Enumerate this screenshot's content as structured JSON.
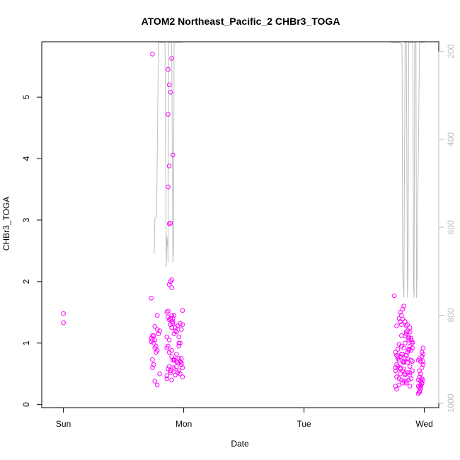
{
  "chart_data": {
    "type": "scatter",
    "title": "ATOM2 Northeast_Pacific_2 CHBr3_TOGA",
    "xlabel": "Date",
    "ylabel": "CHBr3_TOGA",
    "x_ticks": [
      "Sun",
      "Mon",
      "Tue",
      "Wed"
    ],
    "x_tick_days": [
      0,
      1,
      2,
      3
    ],
    "xlim_days": [
      -0.18,
      3.12
    ],
    "ylim": [
      -0.05,
      5.9
    ],
    "y_ticks": [
      0,
      1,
      2,
      3,
      4,
      5
    ],
    "y2_ticks": [
      200,
      400,
      600,
      800,
      1000
    ],
    "y2lim_reversed": [
      178,
      1010
    ],
    "grid": false,
    "colors": {
      "points": "#ff00ff",
      "altitude": "#bebebe",
      "axes": "#000000",
      "right_axis": "#bebebe"
    },
    "series": [
      {
        "marker": "open-circle",
        "x": [
          0.0,
          0.0,
          0.74,
          0.73,
          0.74,
          0.76,
          0.78,
          0.8,
          0.87,
          0.9,
          0.88,
          0.89,
          0.87,
          0.88,
          0.88,
          0.91,
          0.87,
          0.89,
          0.9,
          0.88,
          0.89,
          0.9,
          0.9,
          0.91,
          0.9,
          0.73,
          0.75,
          0.76,
          0.77,
          0.74,
          0.78,
          0.76,
          0.75,
          0.78,
          0.73,
          0.79,
          0.76,
          0.74,
          0.78,
          0.77,
          0.75,
          0.74,
          0.8,
          0.86,
          0.87,
          0.88,
          0.89,
          0.9,
          0.91,
          0.92,
          0.93,
          0.94,
          0.95,
          0.96,
          0.97,
          0.98,
          0.99,
          0.86,
          0.88,
          0.9,
          0.92,
          0.94,
          0.96,
          0.98,
          0.87,
          0.89,
          0.91,
          0.93,
          0.95,
          0.97,
          0.99,
          0.86,
          0.9,
          0.94,
          0.98,
          0.88,
          0.92,
          0.96,
          0.87,
          0.91,
          0.95,
          0.99,
          0.89,
          0.93,
          0.97,
          0.86,
          0.9,
          0.94,
          0.98,
          0.88,
          0.92,
          0.96,
          0.87,
          0.91,
          0.95,
          0.99,
          0.89,
          0.93,
          0.97,
          0.86,
          0.92,
          0.96,
          2.75,
          2.77,
          2.8,
          2.81,
          2.82,
          2.8,
          2.79,
          2.82,
          2.83,
          2.81,
          2.84,
          2.86,
          2.85,
          2.87,
          2.88,
          2.86,
          2.89,
          2.9,
          2.88,
          2.85,
          2.84,
          2.87,
          2.76,
          2.77,
          2.78,
          2.79,
          2.8,
          2.81,
          2.82,
          2.83,
          2.84,
          2.85,
          2.86,
          2.87,
          2.88,
          2.89,
          2.9,
          2.76,
          2.78,
          2.8,
          2.82,
          2.84,
          2.86,
          2.88,
          2.9,
          2.77,
          2.79,
          2.81,
          2.83,
          2.85,
          2.87,
          2.89,
          2.76,
          2.79,
          2.82,
          2.85,
          2.88,
          2.77,
          2.8,
          2.83,
          2.86,
          2.89,
          2.78,
          2.81,
          2.84,
          2.87,
          2.9,
          2.76,
          2.8,
          2.84,
          2.88,
          2.79,
          2.83,
          2.87,
          2.78,
          2.82,
          2.86,
          2.9,
          2.81,
          2.85,
          2.89,
          2.77,
          2.83,
          2.88,
          2.95,
          2.96,
          2.97,
          2.98,
          2.96,
          2.95,
          2.97,
          2.98,
          2.99,
          2.97,
          2.96,
          2.98,
          2.99,
          2.96,
          2.97,
          2.95,
          2.98,
          2.99,
          2.97,
          2.96,
          2.98,
          2.99,
          2.95,
          2.97,
          2.99,
          2.96,
          2.98
        ],
        "y": [
          1.48,
          1.33,
          5.7,
          1.73,
          1.12,
          1.05,
          1.45,
          1.2,
          5.45,
          5.63,
          5.2,
          5.08,
          4.72,
          2.94,
          3.88,
          4.06,
          3.54,
          2.95,
          2.03,
          1.95,
          2.0,
          1.9,
          1.45,
          1.4,
          1.35,
          1.08,
          1.0,
          0.92,
          0.95,
          0.73,
          0.88,
          1.27,
          1.12,
          1.22,
          1.02,
          1.15,
          0.38,
          0.6,
          0.32,
          0.85,
          0.65,
          1.05,
          0.5,
          1.5,
          1.52,
          1.38,
          1.3,
          1.25,
          1.35,
          1.45,
          1.2,
          1.18,
          1.28,
          1.1,
          1.0,
          1.22,
          1.3,
          0.92,
          0.85,
          0.78,
          0.72,
          0.7,
          0.75,
          0.65,
          0.58,
          0.55,
          0.6,
          0.48,
          0.52,
          0.5,
          0.45,
          0.42,
          0.4,
          0.62,
          0.68,
          1.05,
          1.15,
          0.95,
          1.42,
          1.32,
          1.28,
          1.53,
          1.4,
          1.25,
          1.32,
          1.1,
          0.88,
          0.82,
          0.75,
          0.62,
          0.58,
          0.55,
          0.95,
          0.72,
          0.68,
          0.6,
          0.52,
          0.48,
          0.7,
          0.47,
          0.74,
          1.0,
          1.77,
          1.28,
          1.5,
          1.45,
          1.39,
          1.35,
          1.4,
          1.55,
          1.6,
          1.3,
          1.35,
          1.2,
          1.15,
          1.1,
          1.25,
          1.3,
          1.05,
          1.0,
          1.18,
          1.28,
          1.12,
          1.08,
          0.85,
          0.8,
          0.75,
          0.72,
          0.78,
          0.82,
          0.7,
          0.68,
          0.75,
          0.8,
          0.85,
          0.9,
          0.95,
          0.88,
          0.92,
          0.6,
          0.62,
          0.58,
          0.55,
          0.5,
          0.52,
          0.48,
          0.55,
          0.45,
          0.42,
          0.4,
          0.38,
          0.35,
          0.4,
          0.42,
          0.3,
          0.32,
          0.35,
          0.38,
          0.3,
          0.65,
          0.6,
          0.7,
          0.68,
          0.72,
          0.9,
          0.95,
          1.0,
          1.05,
          1.02,
          0.55,
          0.5,
          0.48,
          0.52,
          0.98,
          0.92,
          0.88,
          0.78,
          0.82,
          0.75,
          0.7,
          1.12,
          1.18,
          1.08,
          0.25,
          0.58,
          0.62,
          0.3,
          0.28,
          0.32,
          0.35,
          0.22,
          0.18,
          0.38,
          0.42,
          0.4,
          0.26,
          0.2,
          0.6,
          0.65,
          0.55,
          0.5,
          0.72,
          0.78,
          0.82,
          0.7,
          0.75,
          0.85,
          0.92,
          0.4,
          0.3,
          0.7,
          0.45,
          0.34
        ]
      },
      {
        "kind": "line",
        "axis": "right",
        "x": [
          0.755,
          0.76,
          0.775,
          0.79,
          0.8,
          0.82,
          0.835,
          0.845,
          0.855,
          0.86,
          0.868,
          0.87,
          0.875,
          0.88,
          0.885,
          0.89,
          0.895,
          0.9,
          0.91,
          0.915,
          0.92,
          0.93,
          0.935,
          0.94,
          0.95,
          0.955,
          0.96,
          0.965,
          0.97,
          0.98,
          0.99,
          2.72,
          2.74,
          2.75,
          2.76,
          2.77,
          2.78,
          2.785,
          2.79,
          2.8,
          2.81,
          2.815,
          2.82,
          2.83,
          2.84,
          2.845,
          2.85,
          2.86,
          2.865,
          2.87,
          2.88,
          2.885,
          2.89,
          2.9,
          2.905,
          2.91,
          2.915,
          2.92,
          2.925,
          2.93,
          2.935,
          2.94,
          2.96,
          2.97,
          2.98,
          2.985,
          2.99,
          2.995,
          3.0,
          3.005
        ],
        "y": [
          660,
          580,
          575,
          178,
          178,
          178,
          178,
          178,
          690,
          620,
          650,
          680,
          178,
          178,
          178,
          178,
          178,
          178,
          680,
          655,
          178,
          178,
          178,
          178,
          178,
          178,
          178,
          178,
          178,
          178,
          178,
          178,
          178,
          178,
          178,
          178,
          178,
          178,
          180,
          182,
          184,
          186,
          700,
          760,
          178,
          178,
          178,
          760,
          710,
          178,
          178,
          178,
          178,
          178,
          178,
          730,
          760,
          178,
          178,
          178,
          760,
          710,
          178,
          178,
          178,
          178,
          178,
          178,
          178,
          178
        ]
      }
    ]
  }
}
